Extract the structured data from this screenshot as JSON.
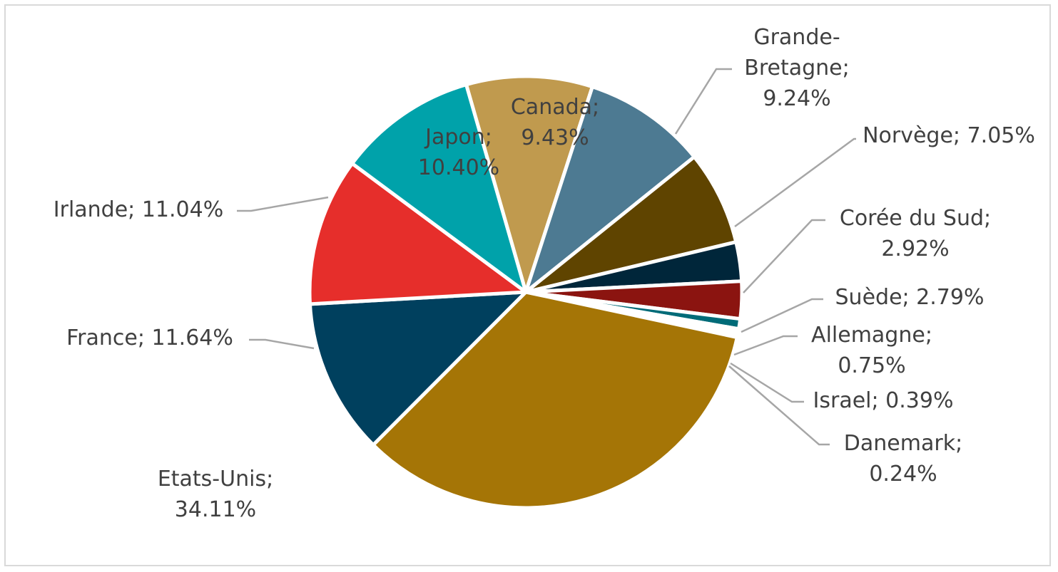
{
  "chart_data": {
    "type": "pie",
    "slices": [
      {
        "name": "Canada",
        "value": 9.43,
        "label_lines": [
          "Canada;",
          "9.43%"
        ],
        "color": "#c09a4e"
      },
      {
        "name": "Grande-Bretagne",
        "value": 9.24,
        "label_lines": [
          "Grande-",
          "Bretagne;",
          "9.24%"
        ],
        "color": "#4d7a92"
      },
      {
        "name": "Norvège",
        "value": 7.05,
        "label_lines": [
          "Norvège; 7.05%"
        ],
        "color": "#5f4400"
      },
      {
        "name": "Corée du Sud",
        "value": 2.92,
        "label_lines": [
          "Corée du Sud;",
          "2.92%"
        ],
        "color": "#00263a"
      },
      {
        "name": "Suède",
        "value": 2.79,
        "label_lines": [
          "Suède; 2.79%"
        ],
        "color": "#8b1410"
      },
      {
        "name": "Allemagne",
        "value": 0.75,
        "label_lines": [
          "Allemagne;",
          "0.75%"
        ],
        "color": "#006b78"
      },
      {
        "name": "Israel",
        "value": 0.39,
        "label_lines": [
          "Israel; 0.39%"
        ],
        "color": "#ffffff"
      },
      {
        "name": "Danemark",
        "value": 0.24,
        "label_lines": [
          "Danemark;",
          "0.24%"
        ],
        "color": "#ffffff"
      },
      {
        "name": "Etats-Unis",
        "value": 34.11,
        "label_lines": [
          "Etats-Unis;",
          "34.11%"
        ],
        "color": "#a57506"
      },
      {
        "name": "France",
        "value": 11.64,
        "label_lines": [
          "France; 11.64%"
        ],
        "color": "#00405e"
      },
      {
        "name": "Irlande",
        "value": 11.04,
        "label_lines": [
          "Irlande; 11.04%"
        ],
        "color": "#e62e2b"
      },
      {
        "name": "Japon",
        "value": 10.4,
        "label_lines": [
          "Japon;",
          "10.40%"
        ],
        "color": "#00a2aa"
      }
    ],
    "legend": "none"
  }
}
